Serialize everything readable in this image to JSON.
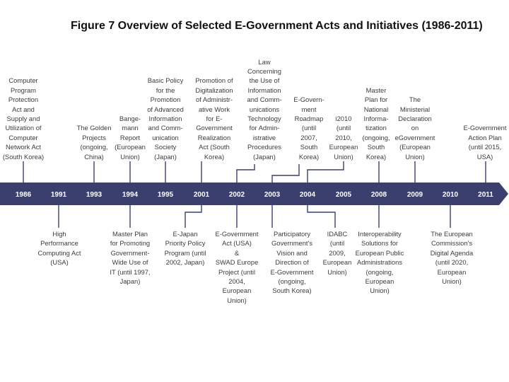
{
  "title": "Figure 7 Overview of Selected E-Government Acts and Initiatives (1986-2011)",
  "years": [
    "1986",
    "1991",
    "1993",
    "1994",
    "1995",
    "2001",
    "2002",
    "2003",
    "2004",
    "2005",
    "2008",
    "2009",
    "2010",
    "2011"
  ],
  "colors": {
    "band": "#3b3f6e",
    "connector": "#3b3f6e",
    "text": "#3c3c3c"
  },
  "events_above": [
    {
      "lines": [
        "Computer",
        "Program",
        "Protection",
        "Act and",
        "Supply and",
        "Utilization of",
        "Computer",
        "Network Act",
        "(South Korea)"
      ]
    },
    {
      "lines": [
        "The Golden",
        "Projects",
        "(ongoing,",
        "China)"
      ]
    },
    {
      "lines": [
        "Bange-",
        "mann",
        "Report",
        "(European",
        "Union)"
      ]
    },
    {
      "lines": [
        "Basic Policy",
        "for the",
        "Promotion",
        "of Advanced",
        "Information",
        "and Comm-",
        "unication",
        "Society",
        "(Japan)"
      ]
    },
    {
      "lines": [
        "Promotion of",
        "Digitalization",
        "of Administr-",
        "ative Work",
        "for E-",
        "Government",
        "Realization",
        "Act (South",
        "Korea)"
      ]
    },
    {
      "lines": [
        "Law",
        "Concerning",
        "the Use of",
        "Information",
        "and Comm-",
        "unications",
        "Technology",
        "for Admin-",
        "istrative",
        "Procedures",
        "(Japan)"
      ]
    },
    {
      "lines": [
        "E-Govern-",
        "ment",
        "Roadmap",
        "(until",
        "2007,",
        "South",
        "Korea)"
      ]
    },
    {
      "lines": [
        "i2010",
        "(until",
        "2010,",
        "European",
        "Union)"
      ]
    },
    {
      "lines": [
        "Master",
        "Plan for",
        "National",
        "Informa-",
        "tization",
        "(ongoing,",
        "South",
        "Korea)"
      ]
    },
    {
      "lines": [
        "The",
        "Ministerial",
        "Declaration",
        "on",
        "eGovernment",
        "(European",
        "Union)"
      ]
    },
    {
      "lines": [
        "E-Government",
        "Action Plan",
        "(until 2015,",
        "USA)"
      ]
    }
  ],
  "events_below": [
    {
      "lines": [
        "High",
        "Performance",
        "Computing Act",
        "(USA)"
      ]
    },
    {
      "lines": [
        "Master Plan",
        "for Promoting",
        "Government-",
        "Wide Use of",
        "IT (until 1997,",
        "Japan)"
      ]
    },
    {
      "lines": [
        "E-Japan",
        "Priority Policy",
        "Program (until",
        "2002, Japan)"
      ]
    },
    {
      "lines": [
        "E-Government",
        "Act (USA)",
        "&",
        "SWAD Europe",
        "Project (until",
        "2004,",
        "European",
        "Union)"
      ]
    },
    {
      "lines": [
        "Participatory",
        "Government's",
        "Vision and",
        "Direction of",
        "E-Government",
        "(ongoing,",
        "South Korea)"
      ]
    },
    {
      "lines": [
        "IDABC",
        "(until",
        "2009,",
        "European",
        "Union)"
      ]
    },
    {
      "lines": [
        "Interoperability",
        "Solutions for",
        "European Public",
        "Administrations",
        "(ongoing,",
        "European",
        "Union)"
      ]
    },
    {
      "lines": [
        "The European",
        "Commission's",
        "Digital Agenda",
        "(until 2020,",
        "European",
        "Union)"
      ]
    }
  ]
}
